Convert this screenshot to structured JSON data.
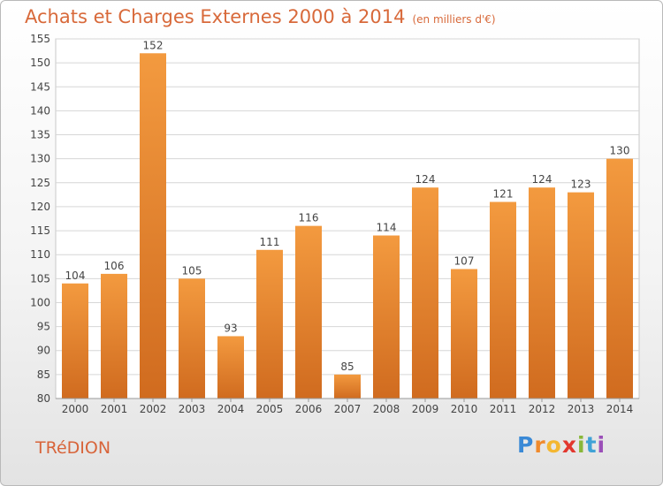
{
  "title": "Achats et Charges Externes 2000 à 2014",
  "unit": "(en milliers d'€)",
  "commune": "TRéDION",
  "logo": {
    "text": "Proxiti",
    "letters": [
      "P",
      "r",
      "o",
      "x",
      "i",
      "t",
      "i"
    ]
  },
  "colors": {
    "bar": "#f39a3f",
    "bar_dark": "#d06b1f",
    "title": "#d8693a",
    "grid": "#d6d6d6"
  },
  "chart_data": {
    "type": "bar",
    "categories": [
      "2000",
      "2001",
      "2002",
      "2003",
      "2004",
      "2005",
      "2006",
      "2007",
      "2008",
      "2009",
      "2010",
      "2011",
      "2012",
      "2013",
      "2014"
    ],
    "values": [
      104,
      106,
      152,
      105,
      93,
      111,
      116,
      85,
      114,
      124,
      107,
      121,
      124,
      123,
      130
    ],
    "yticks": [
      80,
      85,
      90,
      95,
      100,
      105,
      110,
      115,
      120,
      125,
      130,
      135,
      140,
      145,
      150,
      155
    ],
    "ylim": [
      80,
      155
    ],
    "grid": true,
    "data_labels": true
  }
}
